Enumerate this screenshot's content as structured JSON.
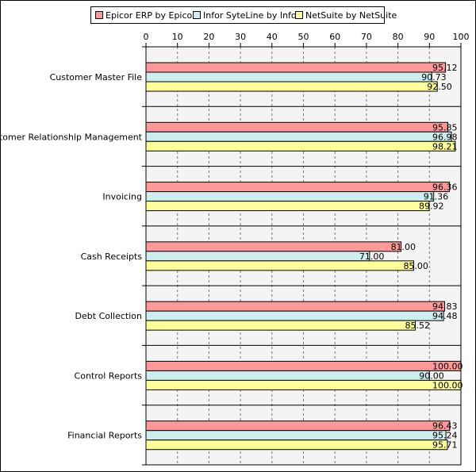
{
  "chart_data": {
    "type": "bar",
    "orientation": "horizontal",
    "categories": [
      "Customer Master File",
      "Customer Relationship Management",
      "Invoicing",
      "Cash Receipts",
      "Debt Collection",
      "Control Reports",
      "Financial Reports"
    ],
    "series": [
      {
        "name": "Epicor ERP by Epicor",
        "color": "#ff9999",
        "values": [
          95.12,
          95.85,
          96.36,
          81.0,
          94.83,
          100.0,
          96.43
        ],
        "labels": [
          "95.12",
          "95.85",
          "96.36",
          "81.00",
          "94.83",
          "100.00",
          "96.43"
        ]
      },
      {
        "name": "Infor SyteLine by Infor",
        "color": "#cceeee",
        "values": [
          90.73,
          96.98,
          91.36,
          71.0,
          94.48,
          90.0,
          95.24
        ],
        "labels": [
          "90.73",
          "96.98",
          "91.36",
          "71.00",
          "94.48",
          "90.00",
          "95.24"
        ]
      },
      {
        "name": "NetSuite by NetSuite",
        "color": "#ffff99",
        "values": [
          92.5,
          98.21,
          89.92,
          85.0,
          85.52,
          100.0,
          95.71
        ],
        "labels": [
          "92.50",
          "98.21",
          "89.92",
          "85.00",
          "85.52",
          "100.00",
          "95.71"
        ]
      }
    ],
    "xlim": [
      0,
      100
    ],
    "xticks": [
      "0",
      "10",
      "20",
      "30",
      "40",
      "50",
      "60",
      "70",
      "80",
      "90",
      "100"
    ],
    "grid": true,
    "legend": "top"
  }
}
